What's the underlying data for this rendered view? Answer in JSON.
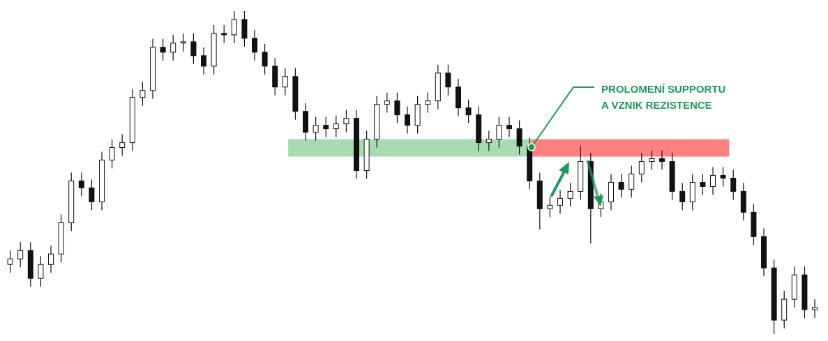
{
  "chart_data": {
    "type": "candlestick",
    "up_color": "#ffffff",
    "down_color": "#111111",
    "ylim": [
      0,
      490
    ],
    "xlim": [
      -1,
      80.3
    ],
    "open": [
      110,
      118,
      130,
      90,
      110,
      125,
      170,
      230,
      220,
      200,
      260,
      278,
      285,
      350,
      360,
      422,
      415,
      428,
      430,
      410,
      395,
      442,
      440,
      462,
      435,
      415,
      395,
      365,
      380,
      330,
      300,
      310,
      305,
      312,
      320,
      245,
      290,
      340,
      345,
      325,
      310,
      340,
      345,
      385,
      365,
      335,
      325,
      285,
      290,
      310,
      305,
      280,
      230,
      190,
      195,
      205,
      215,
      258,
      190,
      200,
      228,
      218,
      240,
      258,
      262,
      258,
      215,
      200,
      228,
      222,
      238,
      234,
      215,
      185,
      150,
      105,
      30,
      60,
      95,
      45
    ],
    "high": [
      130,
      142,
      142,
      122,
      137,
      182,
      242,
      242,
      232,
      272,
      290,
      297,
      362,
      372,
      434,
      434,
      440,
      442,
      442,
      422,
      454,
      454,
      474,
      474,
      447,
      427,
      407,
      392,
      392,
      342,
      322,
      322,
      324,
      332,
      332,
      302,
      352,
      357,
      357,
      337,
      352,
      357,
      397,
      397,
      377,
      347,
      337,
      302,
      322,
      322,
      317,
      292,
      242,
      207,
      217,
      227,
      280,
      270,
      212,
      240,
      240,
      252,
      270,
      274,
      274,
      270,
      227,
      240,
      240,
      250,
      250,
      246,
      227,
      197,
      162,
      117,
      72,
      107,
      107,
      60
    ],
    "low": [
      98,
      106,
      78,
      78,
      98,
      113,
      158,
      208,
      188,
      188,
      248,
      266,
      273,
      338,
      348,
      403,
      403,
      416,
      398,
      383,
      383,
      428,
      428,
      423,
      403,
      383,
      353,
      353,
      318,
      288,
      288,
      293,
      293,
      300,
      233,
      233,
      278,
      328,
      313,
      298,
      298,
      328,
      333,
      353,
      323,
      313,
      273,
      273,
      278,
      293,
      268,
      218,
      160,
      178,
      183,
      193,
      203,
      140,
      178,
      188,
      206,
      206,
      228,
      246,
      246,
      203,
      188,
      188,
      210,
      210,
      222,
      203,
      173,
      138,
      93,
      10,
      18,
      48,
      33,
      33
    ],
    "close": [
      118,
      130,
      90,
      110,
      125,
      170,
      230,
      220,
      200,
      260,
      278,
      285,
      350,
      360,
      422,
      415,
      428,
      430,
      410,
      395,
      442,
      440,
      462,
      435,
      415,
      395,
      365,
      380,
      330,
      300,
      310,
      305,
      312,
      320,
      245,
      290,
      340,
      345,
      325,
      310,
      340,
      345,
      385,
      365,
      335,
      325,
      285,
      290,
      310,
      305,
      280,
      230,
      190,
      195,
      205,
      215,
      258,
      190,
      200,
      228,
      218,
      240,
      258,
      262,
      258,
      215,
      200,
      228,
      222,
      238,
      234,
      215,
      185,
      150,
      105,
      30,
      60,
      95,
      45,
      48
    ],
    "zones": [
      {
        "color": "#a9dbb1",
        "low": 265,
        "high": 290,
        "start": 27.3,
        "end": 51.1
      },
      {
        "color": "#ff8080",
        "low": 265,
        "high": 290,
        "start": 51.1,
        "end": 70.6
      }
    ],
    "annotation_color": "#1c9a5a",
    "annotation": [
      "PROLOMENÍ SUPPORTU",
      "A VZNIK REZISTENCE"
    ]
  }
}
